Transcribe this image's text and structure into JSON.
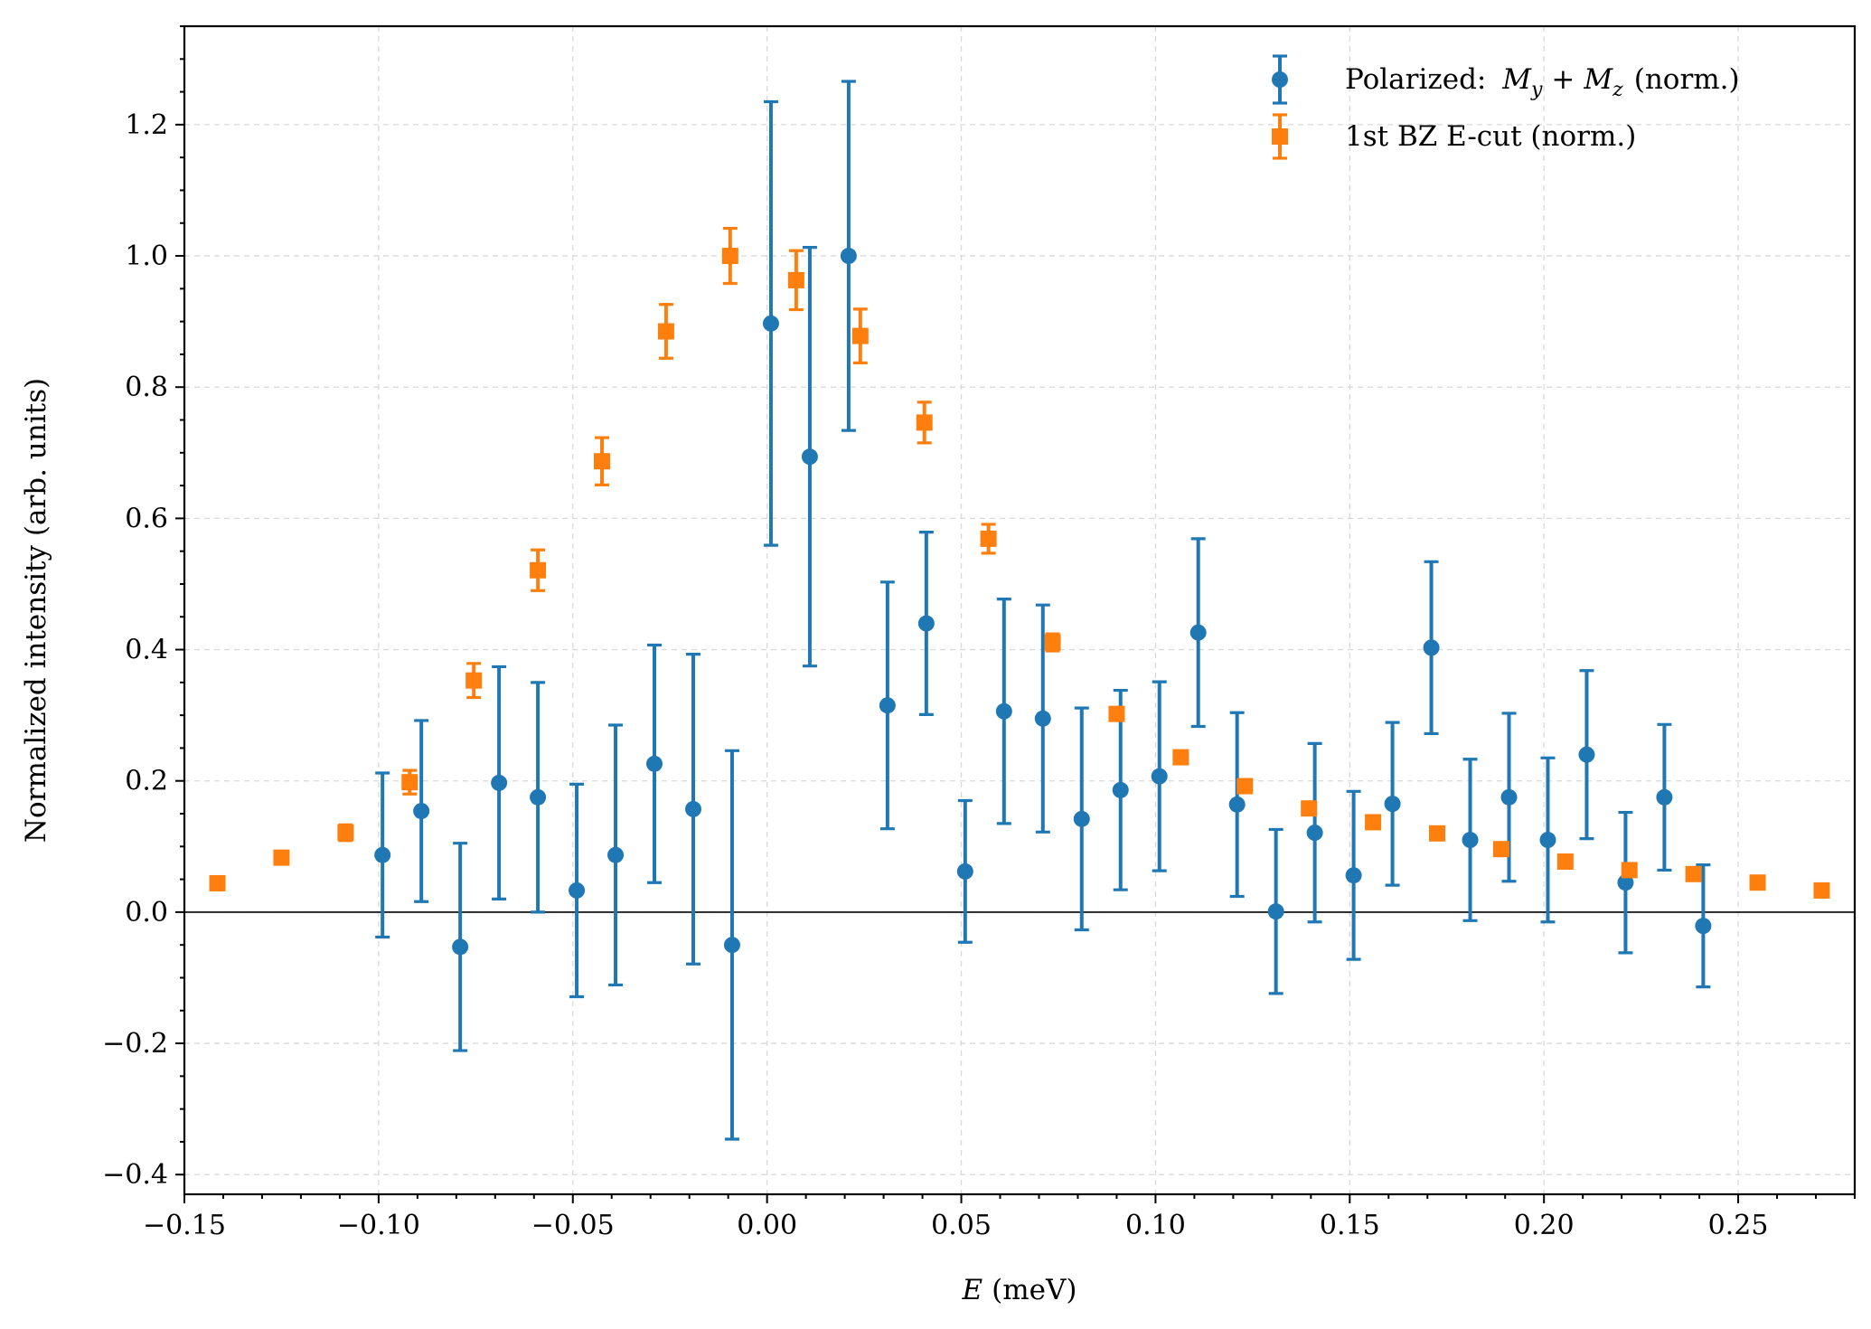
{
  "chart_data": {
    "type": "scatter",
    "title": "",
    "xlabel": "E (meV)",
    "xlabel_var": "E",
    "xlabel_unit": "(meV)",
    "ylabel": "Normalized intensity (arb. units)",
    "xlim": [
      -0.15,
      0.28
    ],
    "ylim": [
      -0.43,
      1.35
    ],
    "x_ticks": [
      -0.15,
      -0.1,
      -0.05,
      0.0,
      0.05,
      0.1,
      0.15,
      0.2,
      0.25
    ],
    "x_tick_labels": [
      "−0.15",
      "−0.10",
      "−0.05",
      "0.00",
      "0.05",
      "0.10",
      "0.15",
      "0.20",
      "0.25"
    ],
    "y_ticks": [
      -0.4,
      -0.2,
      0.0,
      0.2,
      0.4,
      0.6,
      0.8,
      1.0,
      1.2
    ],
    "y_tick_labels": [
      "−0.4",
      "−0.2",
      "0.0",
      "0.2",
      "0.4",
      "0.6",
      "0.8",
      "1.0",
      "1.2"
    ],
    "grid": true,
    "zero_line": true,
    "legend_position": "top-right",
    "series": [
      {
        "name": "Polarized: M_y + M_z (norm.)",
        "legend_prefix": "Polarized: ",
        "legend_math": [
          "M",
          "y",
          "+",
          "M",
          "z"
        ],
        "legend_suffix": "(norm.)",
        "marker": "circle",
        "color": "#1f77b4",
        "points": [
          {
            "x": -0.099,
            "y": 0.087,
            "err": 0.125
          },
          {
            "x": -0.089,
            "y": 0.154,
            "err": 0.138
          },
          {
            "x": -0.079,
            "y": -0.053,
            "err": 0.158
          },
          {
            "x": -0.069,
            "y": 0.197,
            "err": 0.177
          },
          {
            "x": -0.059,
            "y": 0.175,
            "err": 0.175
          },
          {
            "x": -0.049,
            "y": 0.033,
            "err": 0.162
          },
          {
            "x": -0.039,
            "y": 0.087,
            "err": 0.198
          },
          {
            "x": -0.029,
            "y": 0.226,
            "err": 0.181
          },
          {
            "x": -0.019,
            "y": 0.157,
            "err": 0.236
          },
          {
            "x": -0.009,
            "y": -0.05,
            "err": 0.296
          },
          {
            "x": 0.001,
            "y": 0.897,
            "err": 0.338
          },
          {
            "x": 0.011,
            "y": 0.694,
            "err": 0.319
          },
          {
            "x": 0.021,
            "y": 1.0,
            "err": 0.266
          },
          {
            "x": 0.031,
            "y": 0.315,
            "err": 0.188
          },
          {
            "x": 0.041,
            "y": 0.44,
            "err": 0.139
          },
          {
            "x": 0.051,
            "y": 0.062,
            "err": 0.108
          },
          {
            "x": 0.061,
            "y": 0.306,
            "err": 0.171
          },
          {
            "x": 0.071,
            "y": 0.295,
            "err": 0.173
          },
          {
            "x": 0.081,
            "y": 0.142,
            "err": 0.169
          },
          {
            "x": 0.091,
            "y": 0.186,
            "err": 0.152
          },
          {
            "x": 0.101,
            "y": 0.207,
            "err": 0.144
          },
          {
            "x": 0.111,
            "y": 0.426,
            "err": 0.143
          },
          {
            "x": 0.121,
            "y": 0.164,
            "err": 0.14
          },
          {
            "x": 0.131,
            "y": 0.001,
            "err": 0.125
          },
          {
            "x": 0.141,
            "y": 0.121,
            "err": 0.136
          },
          {
            "x": 0.151,
            "y": 0.056,
            "err": 0.128
          },
          {
            "x": 0.161,
            "y": 0.165,
            "err": 0.124
          },
          {
            "x": 0.171,
            "y": 0.403,
            "err": 0.131
          },
          {
            "x": 0.181,
            "y": 0.11,
            "err": 0.123
          },
          {
            "x": 0.191,
            "y": 0.175,
            "err": 0.128
          },
          {
            "x": 0.201,
            "y": 0.11,
            "err": 0.125
          },
          {
            "x": 0.211,
            "y": 0.24,
            "err": 0.128
          },
          {
            "x": 0.221,
            "y": 0.045,
            "err": 0.107
          },
          {
            "x": 0.231,
            "y": 0.175,
            "err": 0.111
          },
          {
            "x": 0.241,
            "y": -0.021,
            "err": 0.093
          }
        ]
      },
      {
        "name": "1st BZ E-cut (norm.)",
        "legend_prefix": "1st BZ E-cut (norm.)",
        "legend_math": [],
        "legend_suffix": "",
        "marker": "square",
        "color": "#ff7f0e",
        "points": [
          {
            "x": -0.1415,
            "y": 0.044,
            "err": 0.006
          },
          {
            "x": -0.125,
            "y": 0.083,
            "err": 0.009
          },
          {
            "x": -0.1085,
            "y": 0.121,
            "err": 0.012
          },
          {
            "x": -0.092,
            "y": 0.198,
            "err": 0.018
          },
          {
            "x": -0.0755,
            "y": 0.353,
            "err": 0.026
          },
          {
            "x": -0.059,
            "y": 0.521,
            "err": 0.031
          },
          {
            "x": -0.0425,
            "y": 0.687,
            "err": 0.036
          },
          {
            "x": -0.026,
            "y": 0.885,
            "err": 0.041
          },
          {
            "x": -0.0095,
            "y": 1.0,
            "err": 0.042
          },
          {
            "x": 0.0075,
            "y": 0.963,
            "err": 0.045
          },
          {
            "x": 0.024,
            "y": 0.878,
            "err": 0.041
          },
          {
            "x": 0.0405,
            "y": 0.746,
            "err": 0.031
          },
          {
            "x": 0.057,
            "y": 0.569,
            "err": 0.022
          },
          {
            "x": 0.0735,
            "y": 0.411,
            "err": 0.013
          },
          {
            "x": 0.09,
            "y": 0.302,
            "err": 0.01
          },
          {
            "x": 0.1065,
            "y": 0.236,
            "err": 0.008
          },
          {
            "x": 0.123,
            "y": 0.192,
            "err": 0.007
          },
          {
            "x": 0.1395,
            "y": 0.158,
            "err": 0.006
          },
          {
            "x": 0.156,
            "y": 0.137,
            "err": 0.005
          },
          {
            "x": 0.1725,
            "y": 0.12,
            "err": 0.005
          },
          {
            "x": 0.189,
            "y": 0.096,
            "err": 0.005
          },
          {
            "x": 0.2055,
            "y": 0.077,
            "err": 0.004
          },
          {
            "x": 0.222,
            "y": 0.064,
            "err": 0.004
          },
          {
            "x": 0.2385,
            "y": 0.058,
            "err": 0.004
          },
          {
            "x": 0.255,
            "y": 0.045,
            "err": 0.003
          },
          {
            "x": 0.2715,
            "y": 0.033,
            "err": 0.003
          }
        ]
      }
    ]
  }
}
